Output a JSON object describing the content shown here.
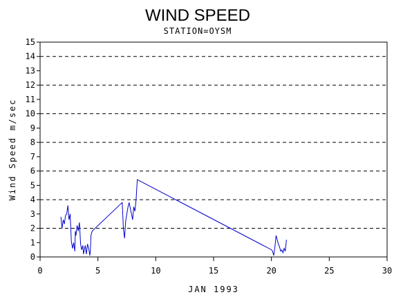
{
  "chart_data": {
    "type": "line",
    "title": "WIND SPEED",
    "subtitle": "STATION=OYSM",
    "xlabel": "JAN 1993",
    "ylabel": "Wind Speed m/sec",
    "xlim": [
      0,
      30
    ],
    "ylim": [
      0,
      15
    ],
    "x_ticks": [
      0,
      5,
      10,
      15,
      20,
      25,
      30
    ],
    "y_ticks": [
      0,
      1,
      2,
      3,
      4,
      5,
      6,
      7,
      8,
      9,
      10,
      11,
      12,
      13,
      14,
      15
    ],
    "grid_y": [
      2,
      4,
      6,
      8,
      10,
      12,
      14
    ],
    "grid": true,
    "line_color": "#0000cc",
    "series": [
      {
        "x": [
          1.8,
          1.9,
          2.0,
          2.1,
          2.2,
          2.3,
          2.4,
          2.5,
          2.6,
          2.7,
          2.8,
          2.9,
          3.0,
          3.05,
          3.1,
          3.2,
          3.3,
          3.4,
          3.5,
          3.6,
          3.7,
          3.75,
          3.8,
          3.9,
          4.0,
          4.1,
          4.2,
          4.3,
          4.35,
          4.4,
          4.5,
          7.1,
          7.2,
          7.3,
          7.4,
          7.5,
          7.6,
          7.7,
          7.8,
          7.9,
          8.0,
          8.1,
          8.2,
          8.3,
          8.4,
          20.0,
          20.1,
          20.2,
          20.3,
          20.4,
          20.5,
          20.6,
          20.7,
          20.8,
          20.9,
          21.0,
          21.1,
          21.2,
          21.3
        ],
        "values": [
          2.8,
          2.0,
          2.6,
          2.3,
          2.9,
          3.0,
          3.6,
          2.6,
          3.0,
          1.1,
          0.6,
          1.0,
          0.4,
          1.8,
          1.5,
          2.2,
          1.8,
          2.4,
          0.9,
          0.5,
          0.8,
          0.2,
          0.4,
          0.8,
          0.2,
          0.9,
          0.6,
          0.1,
          0.5,
          1.5,
          1.8,
          3.8,
          2.0,
          1.3,
          2.5,
          3.0,
          3.5,
          3.8,
          3.4,
          3.0,
          2.6,
          3.5,
          3.2,
          4.0,
          5.4,
          0.5,
          0.4,
          0.1,
          0.7,
          1.5,
          1.2,
          0.9,
          0.7,
          0.4,
          0.5,
          0.3,
          0.6,
          0.4,
          1.2
        ]
      }
    ]
  }
}
